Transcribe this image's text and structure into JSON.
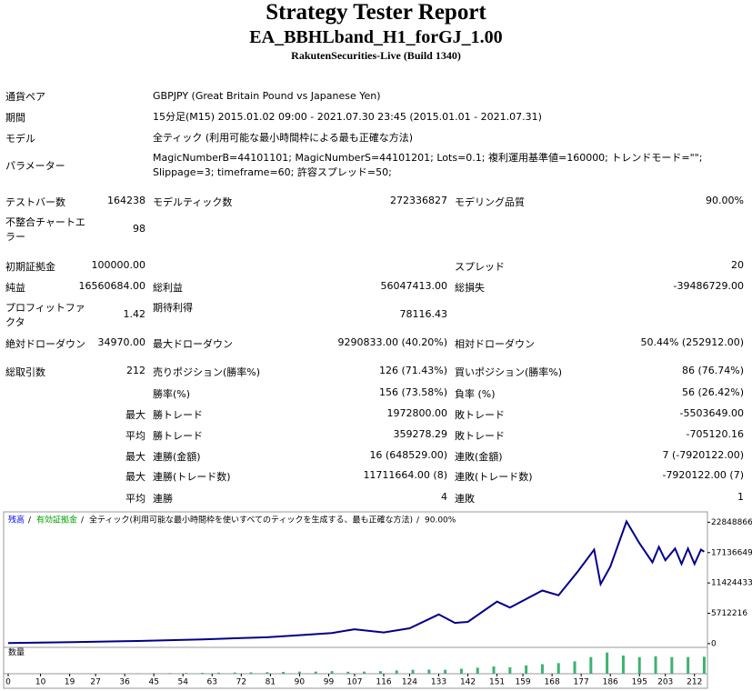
{
  "header": {
    "title": "Strategy Tester Report",
    "subtitle": "EA_BBHLband_H1_forGJ_1.00",
    "build": "RakutenSecurities-Live (Build 1340)"
  },
  "info": [
    {
      "label": "通貨ペア",
      "value": "GBPJPY (Great Britain Pound vs Japanese Yen)"
    },
    {
      "label": "期間",
      "value": "15分足(M15) 2015.01.02 09:00 - 2021.07.30 23:45 (2015.01.01 - 2021.07.31)"
    },
    {
      "label": "モデル",
      "value": "全ティック (利用可能な最小時間枠による最も正確な方法)"
    },
    {
      "label": "パラメーター",
      "value": "MagicNumberB=44101101; MagicNumberS=44101201; Lots=0.1; 複利運用基準値=160000; トレンドモード=\"\"; Slippage=3; timeframe=60; 許容スプレッド=50;"
    }
  ],
  "stats": [
    {
      "label1": "テストバー数",
      "value1": "164238",
      "label2": "モデルティック数",
      "value2": "272336827",
      "label3": "モデリング品質",
      "value3": "90.00%"
    },
    {
      "label1": "不整合チャートエラー",
      "value1": "98"
    },
    {
      "label1": "初期証拠金",
      "value1": "100000.00",
      "label3": "スプレッド",
      "value3": "20"
    },
    {
      "label1": "純益",
      "value1": "16560684.00",
      "label2": "総利益",
      "value2": "56047413.00",
      "label3": "総損失",
      "value3": "-39486729.00"
    },
    {
      "label1": "プロフィットファクタ",
      "value1": "1.42",
      "label2": "期待利得",
      "value2": "78116.43"
    },
    {
      "label1": "絶対ドローダウン",
      "value1": "34970.00",
      "label2": "最大ドローダウン",
      "value2": "9290833.00 (40.20%)",
      "label3": "相対ドローダウン",
      "value3": "50.44% (252912.00)"
    },
    {
      "label1": "総取引数",
      "value1": "212",
      "label2": "売りポジション(勝率%)",
      "value2": "126 (71.43%)",
      "label3": "買いポジション(勝率%)",
      "value3": "86 (76.74%)"
    },
    {
      "label2": "勝率(%)",
      "value2": "156 (73.58%)",
      "label3": "負率 (%)",
      "value3": "56 (26.42%)"
    },
    {
      "value1": "最大",
      "label2": "勝トレード",
      "value2": "1972800.00",
      "label3": "敗トレード",
      "value3": "-5503649.00"
    },
    {
      "value1": "平均",
      "label2": "勝トレード",
      "value2": "359278.29",
      "label3": "敗トレード",
      "value3": "-705120.16"
    },
    {
      "value1": "最大",
      "label2": "連勝(金額)",
      "value2": "16 (648529.00)",
      "label3": "連敗(金額)",
      "value3": "7 (-7920122.00)"
    },
    {
      "value1": "最大",
      "label2": "連勝(トレード数)",
      "value2": "11711664.00 (8)",
      "label3": "連敗(トレード数)",
      "value3": "-7920122.00 (7)"
    },
    {
      "value1": "平均",
      "label2": "連勝",
      "value2": "4",
      "label3": "連敗",
      "value3": "1"
    }
  ],
  "chart_data": {
    "type": "line",
    "legend": [
      {
        "text": "残高",
        "color": "#0000ff"
      },
      {
        "text": "有効証拠金",
        "color": "#00a000"
      },
      {
        "text": "全ティック(利用可能な最小時間枠を使いすべてのティックを生成する、最も正確な方法)",
        "color": "#000000"
      },
      {
        "text": "90.00%",
        "color": "#000000"
      }
    ],
    "x": [
      0,
      20,
      40,
      60,
      80,
      90,
      100,
      107,
      116,
      124,
      133,
      138,
      142,
      151,
      155,
      165,
      170,
      176,
      181,
      183,
      186,
      191,
      195,
      199,
      201,
      203,
      206,
      208,
      210,
      212,
      214,
      215
    ],
    "series": [
      {
        "name": "残高",
        "color": "#00008b",
        "values": [
          100000,
          300000,
          500000,
          800000,
          1200000,
          1600000,
          2000000,
          2700000,
          2100000,
          2900000,
          5500000,
          3900000,
          4100000,
          7900000,
          6800000,
          10000000,
          9100000,
          13600000,
          17700000,
          11200000,
          14500000,
          23000000,
          18900000,
          15300000,
          18200000,
          15700000,
          17900000,
          15000000,
          17900000,
          15000000,
          17700000,
          17300000
        ]
      }
    ],
    "xlim": [
      -1.4,
      216
    ],
    "ylim": [
      -700000,
      24800000
    ],
    "xticks": [
      0,
      10,
      19,
      27,
      36,
      45,
      54,
      63,
      72,
      81,
      90,
      99,
      107,
      116,
      124,
      133,
      142,
      151,
      159,
      168,
      177,
      186,
      195,
      203,
      212
    ],
    "yticks": [
      0,
      5712216,
      11424433,
      17136649,
      22848866
    ],
    "volume": {
      "label": "数量",
      "color": "#3cb371",
      "ylim": [
        0,
        15
      ],
      "x": [
        0,
        5,
        10,
        15,
        20,
        25,
        30,
        35,
        40,
        45,
        50,
        55,
        60,
        65,
        70,
        75,
        80,
        85,
        90,
        95,
        100,
        105,
        110,
        115,
        120,
        125,
        130,
        135,
        140,
        145,
        150,
        155,
        160,
        165,
        170,
        175,
        180,
        185,
        190,
        195,
        200,
        205,
        210,
        215
      ],
      "values": [
        0.1,
        0.1,
        0.1,
        0.2,
        0.2,
        0.2,
        0.3,
        0.3,
        0.3,
        0.4,
        0.4,
        0.5,
        0.6,
        0.7,
        0.8,
        0.9,
        1.0,
        1.2,
        1.4,
        1.4,
        1.7,
        1.3,
        1.4,
        1.7,
        2.2,
        2.6,
        2.7,
        2.6,
        3.3,
        4.0,
        4.8,
        4.2,
        5.5,
        6.3,
        7.0,
        8.2,
        11.0,
        14.0,
        12.0,
        11.0,
        11.5,
        11.0,
        11.0,
        11.2
      ]
    }
  }
}
